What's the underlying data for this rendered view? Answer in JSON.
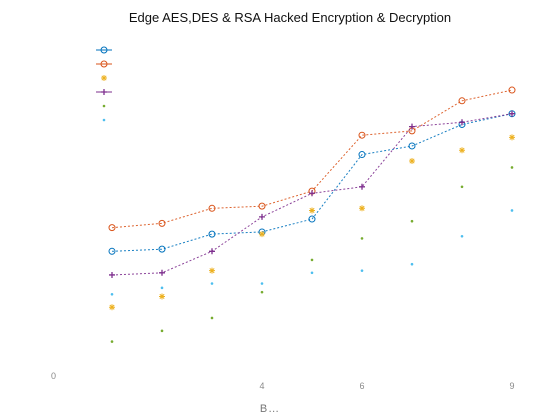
{
  "chart_data": {
    "type": "line",
    "title": "Edge AES,DES & RSA Hacked Encryption & Decryption",
    "xlabel": "B…",
    "ylabel": "",
    "x": [
      1,
      2,
      3,
      4,
      5,
      6,
      7,
      8,
      9
    ],
    "xlim": [
      0,
      9
    ],
    "xtick_labels": [
      "",
      "",
      "",
      "4",
      "",
      "6",
      "",
      "",
      "9"
    ],
    "ylim": [
      0,
      1.6
    ],
    "ytick_values": [
      0,
      0.2,
      0.4,
      0.6,
      0.8,
      1.0,
      1.2,
      1.4,
      1.6
    ],
    "ytick_labels": [
      "0",
      "",
      "",
      "",
      "",
      "",
      "",
      "",
      ""
    ],
    "grid": false,
    "legend_position": "top-left",
    "series": [
      {
        "name": "",
        "color": "#0072bd",
        "marker": "circle",
        "line": true,
        "values": [
          0.58,
          0.59,
          0.66,
          0.67,
          0.73,
          1.03,
          1.07,
          1.17,
          1.22
        ]
      },
      {
        "name": "",
        "color": "#d95319",
        "marker": "circle",
        "line": true,
        "values": [
          0.69,
          0.71,
          0.78,
          0.79,
          0.86,
          1.12,
          1.14,
          1.28,
          1.33
        ]
      },
      {
        "name": "",
        "color": "#edb120",
        "marker": "star",
        "line": false,
        "values": [
          0.32,
          0.37,
          0.49,
          0.66,
          0.77,
          0.78,
          1.0,
          1.05,
          1.11
        ]
      },
      {
        "name": "",
        "color": "#7e2f8e",
        "marker": "plus",
        "line": true,
        "values": [
          0.47,
          0.48,
          0.58,
          0.74,
          0.85,
          0.88,
          1.16,
          1.18,
          1.22
        ]
      },
      {
        "name": "",
        "color": "#77ac30",
        "marker": "dot",
        "line": false,
        "values": [
          0.16,
          0.21,
          0.27,
          0.39,
          0.54,
          0.64,
          0.72,
          0.88,
          0.97
        ]
      },
      {
        "name": "",
        "color": "#4dbeee",
        "marker": "dot",
        "line": false,
        "values": [
          0.38,
          0.41,
          0.43,
          0.43,
          0.48,
          0.49,
          0.52,
          0.65,
          0.77
        ]
      }
    ]
  }
}
